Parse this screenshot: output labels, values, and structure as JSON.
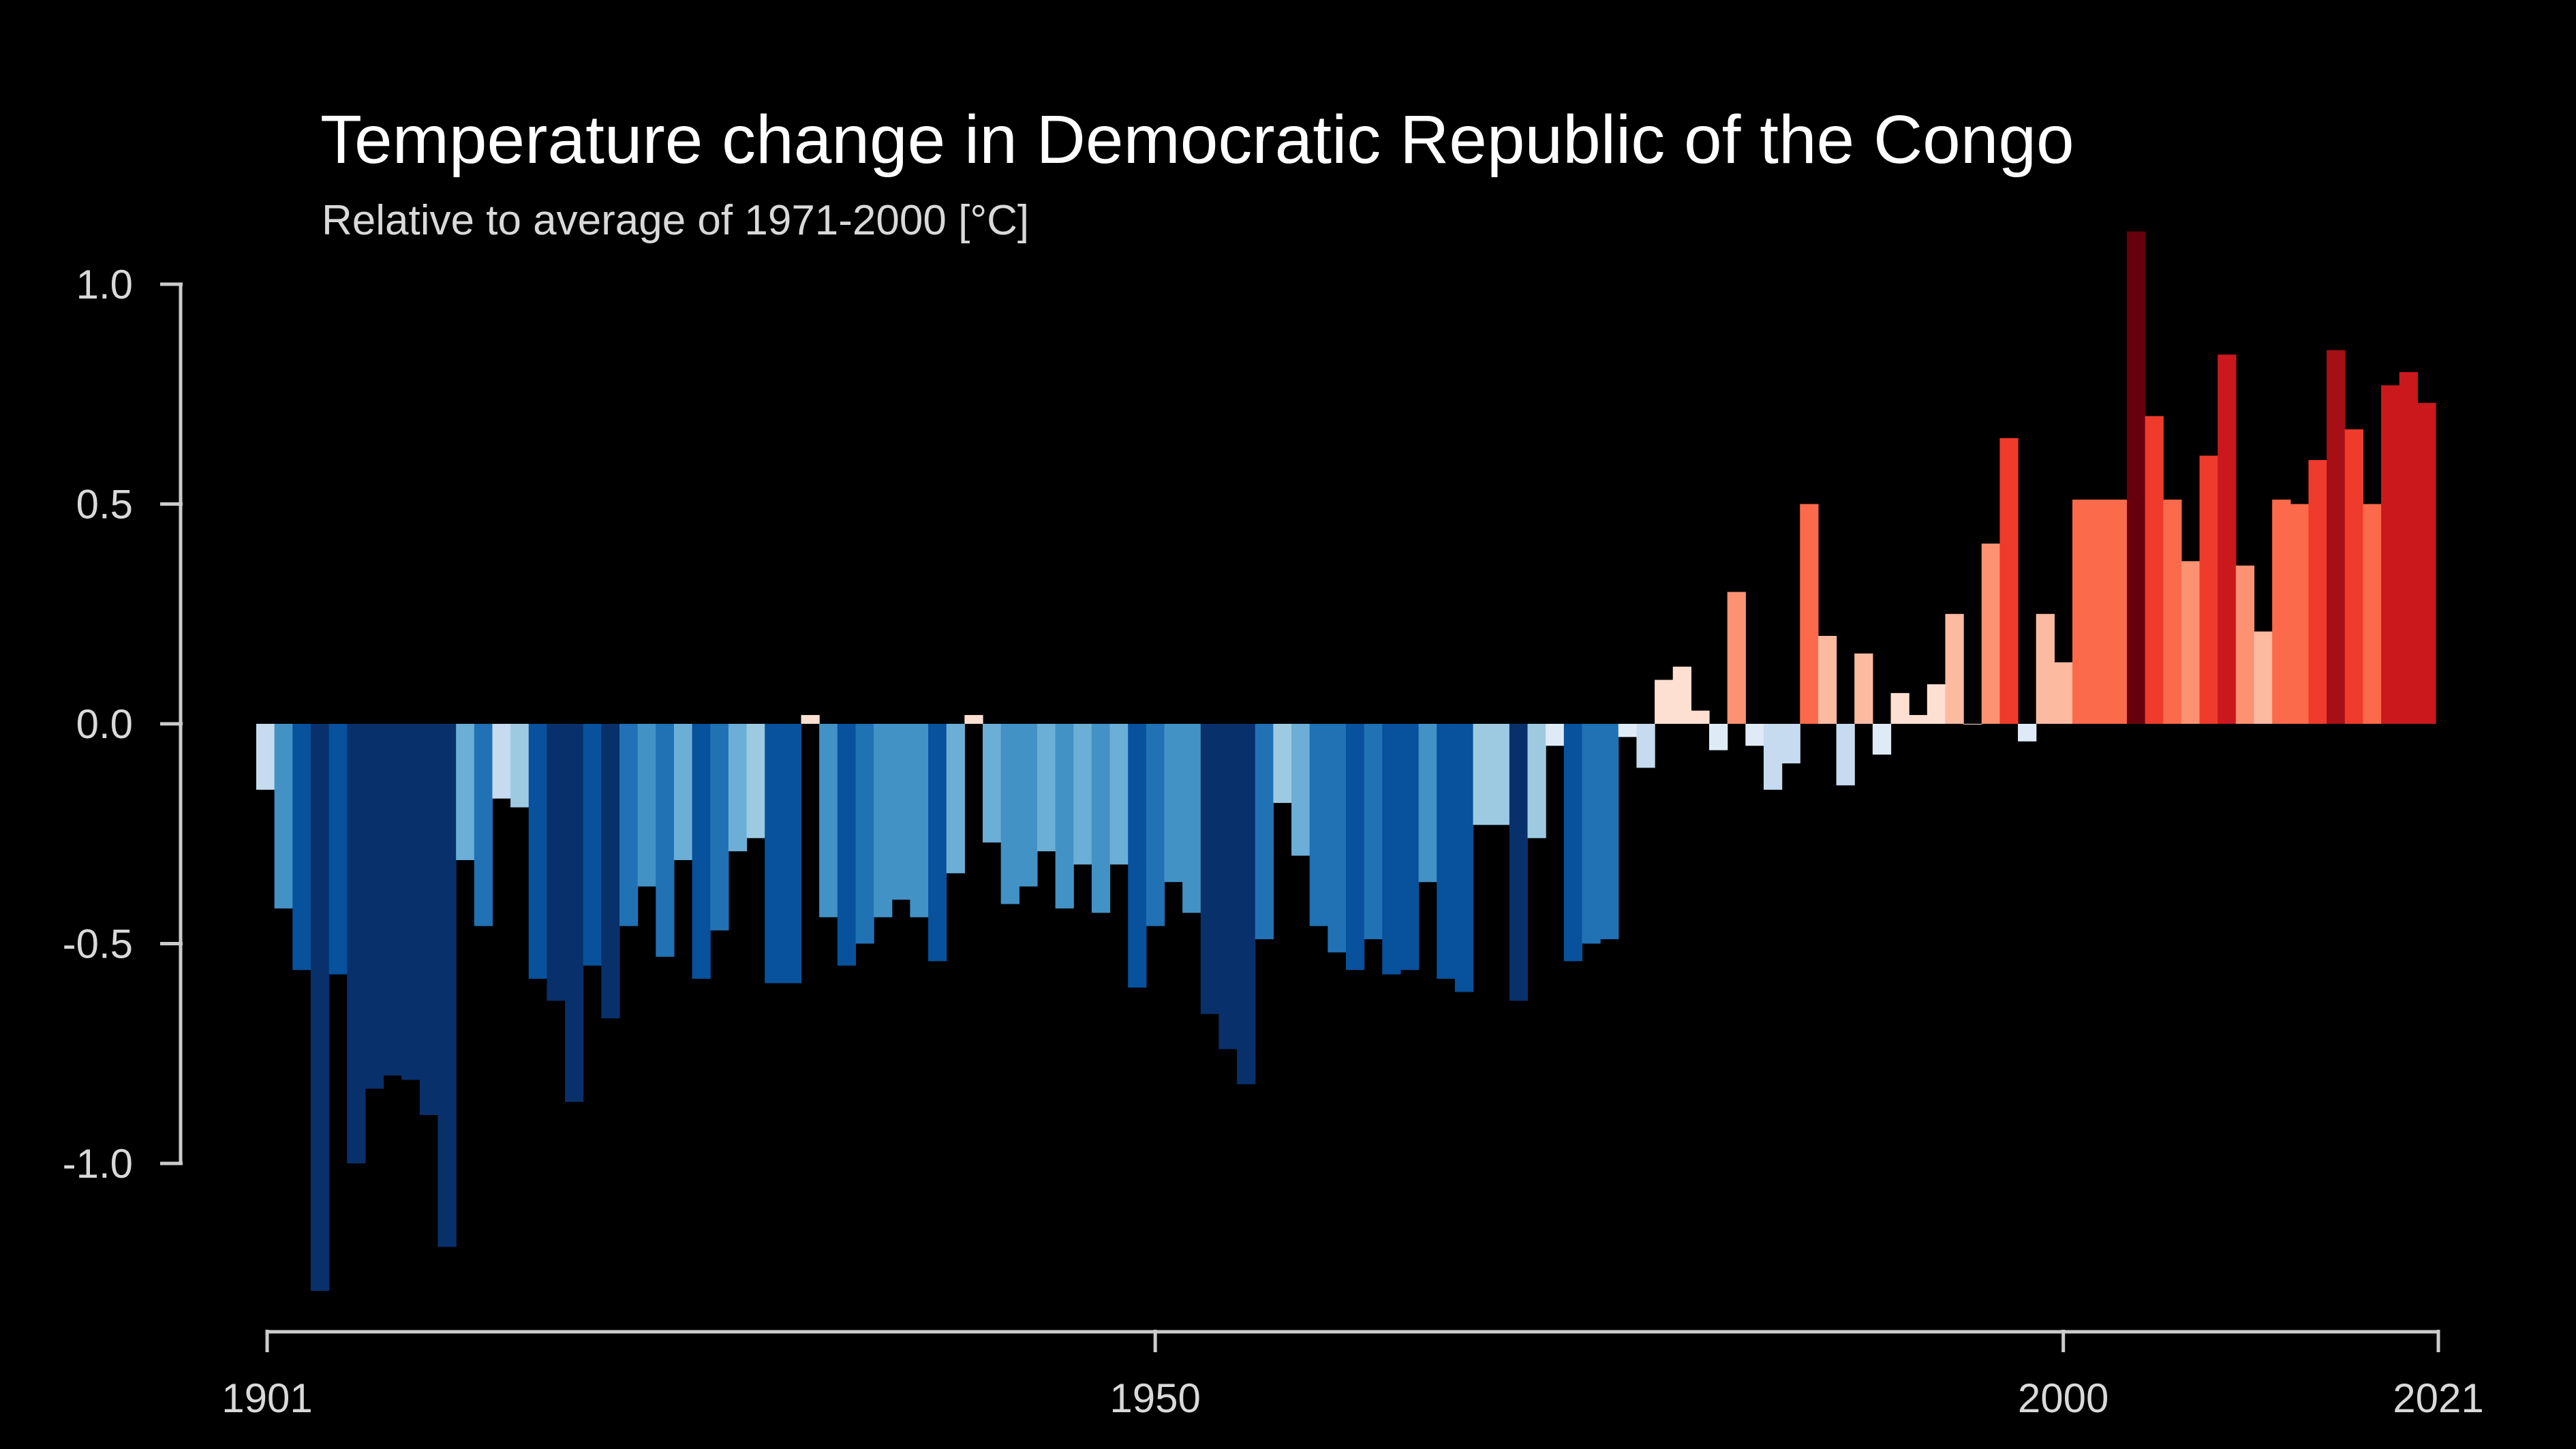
{
  "chart_data": {
    "type": "bar",
    "title": "Temperature change in Democratic Republic of the Congo",
    "subtitle": "Relative to average of 1971-2000  [°C]",
    "xlabel": "",
    "ylabel": "",
    "x_start": 1901,
    "x_end": 2021,
    "xticks": [
      1901,
      1950,
      2000,
      2021
    ],
    "yticks": [
      1.0,
      0.5,
      0.0,
      -0.5,
      -1.0
    ],
    "ytick_labels": [
      "1.0",
      "0.5",
      "0.0",
      "-0.5",
      "-1.0"
    ],
    "ylim": [
      -1.35,
      1.15
    ],
    "color_scale": {
      "cold": [
        "#08306b",
        "#08519c",
        "#2171b5",
        "#4292c6",
        "#6baed6",
        "#9ecae1",
        "#c6dbef",
        "#deebf7"
      ],
      "warm": [
        "#fee0d2",
        "#fcbba1",
        "#fc9272",
        "#fb6a4a",
        "#ef3b2c",
        "#cb181d",
        "#a50f15",
        "#67000d"
      ]
    },
    "values": [
      -0.15,
      -0.42,
      -0.56,
      -1.29,
      -0.57,
      -1.0,
      -0.83,
      -0.8,
      -0.81,
      -0.89,
      -1.19,
      -0.31,
      -0.46,
      -0.17,
      -0.19,
      -0.58,
      -0.63,
      -0.86,
      -0.55,
      -0.67,
      -0.46,
      -0.37,
      -0.53,
      -0.31,
      -0.58,
      -0.47,
      -0.29,
      -0.26,
      -0.59,
      -0.59,
      0.02,
      -0.44,
      -0.55,
      -0.5,
      -0.44,
      -0.4,
      -0.44,
      -0.54,
      -0.34,
      0.02,
      -0.27,
      -0.41,
      -0.37,
      -0.29,
      -0.42,
      -0.32,
      -0.43,
      -0.32,
      -0.6,
      -0.46,
      -0.36,
      -0.43,
      -0.66,
      -0.74,
      -0.82,
      -0.49,
      -0.18,
      -0.3,
      -0.46,
      -0.52,
      -0.56,
      -0.49,
      -0.57,
      -0.56,
      -0.36,
      -0.58,
      -0.61,
      -0.23,
      -0.23,
      -0.63,
      -0.26,
      -0.05,
      -0.54,
      -0.5,
      -0.49,
      -0.03,
      -0.1,
      0.1,
      0.13,
      0.03,
      -0.06,
      0.3,
      -0.05,
      -0.15,
      -0.09,
      0.5,
      0.2,
      -0.14,
      0.16,
      -0.07,
      0.07,
      0.02,
      0.09,
      0.25,
      0.0,
      0.41,
      0.65,
      -0.04,
      0.25,
      0.14,
      0.51,
      0.51,
      0.51,
      1.12,
      0.7,
      0.51,
      0.37,
      0.61,
      0.84,
      0.36,
      0.21,
      0.51,
      0.5,
      0.6,
      0.85,
      0.67,
      0.5,
      0.77,
      0.8,
      0.73
    ],
    "grid": false,
    "legend": "none"
  }
}
